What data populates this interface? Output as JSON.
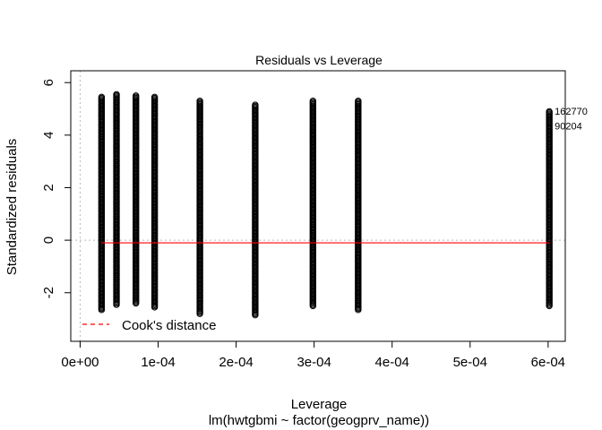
{
  "chart_data": {
    "type": "scatter",
    "title": "Residuals vs Leverage",
    "xlabel": "Leverage",
    "ylabel": "Standardized residuals",
    "subtitle": "lm(hwtgbmi ~ factor(geogprv_name))",
    "xlim": [
      -1.2e-05,
      0.000622
    ],
    "ylim": [
      -3.85,
      6.45
    ],
    "x_ticks": [
      0,
      0.0001,
      0.0002,
      0.0003,
      0.0004,
      0.0005,
      0.0006
    ],
    "x_tick_labels": [
      "0e+00",
      "1e-04",
      "2e-04",
      "3e-04",
      "4e-04",
      "5e-04",
      "6e-04"
    ],
    "y_ticks": [
      -2,
      0,
      2,
      4,
      6
    ],
    "y_tick_labels": [
      "-2",
      "0",
      "2",
      "4",
      "6"
    ],
    "groups": [
      {
        "leverage": 2.75e-05,
        "ymin": -2.65,
        "ymax": 5.45
      },
      {
        "leverage": 4.66e-05,
        "ymin": -2.45,
        "ymax": 5.55
      },
      {
        "leverage": 7.15e-05,
        "ymin": -2.4,
        "ymax": 5.5
      },
      {
        "leverage": 9.55e-05,
        "ymin": -2.55,
        "ymax": 5.45
      },
      {
        "leverage": 0.0001535,
        "ymin": -2.8,
        "ymax": 5.3
      },
      {
        "leverage": 0.0002245,
        "ymin": -2.85,
        "ymax": 5.15
      },
      {
        "leverage": 0.0002985,
        "ymin": -2.5,
        "ymax": 5.3
      },
      {
        "leverage": 0.0003565,
        "ymin": -2.65,
        "ymax": 5.3
      },
      {
        "leverage": 0.0006015,
        "ymin": -2.5,
        "ymax": 4.9
      }
    ],
    "smooth_line": {
      "color": "#ff0000",
      "y": -0.1
    },
    "reference_color": "#bbbbbb",
    "labeled_points": [
      {
        "label": "162770",
        "x": 0.0006015,
        "y": 4.92
      },
      {
        "label": "90204",
        "x": 0.0006015,
        "y": 4.35
      }
    ],
    "legend": {
      "label": "Cook's distance",
      "color": "#ff0000",
      "position": "bottom-left"
    }
  }
}
